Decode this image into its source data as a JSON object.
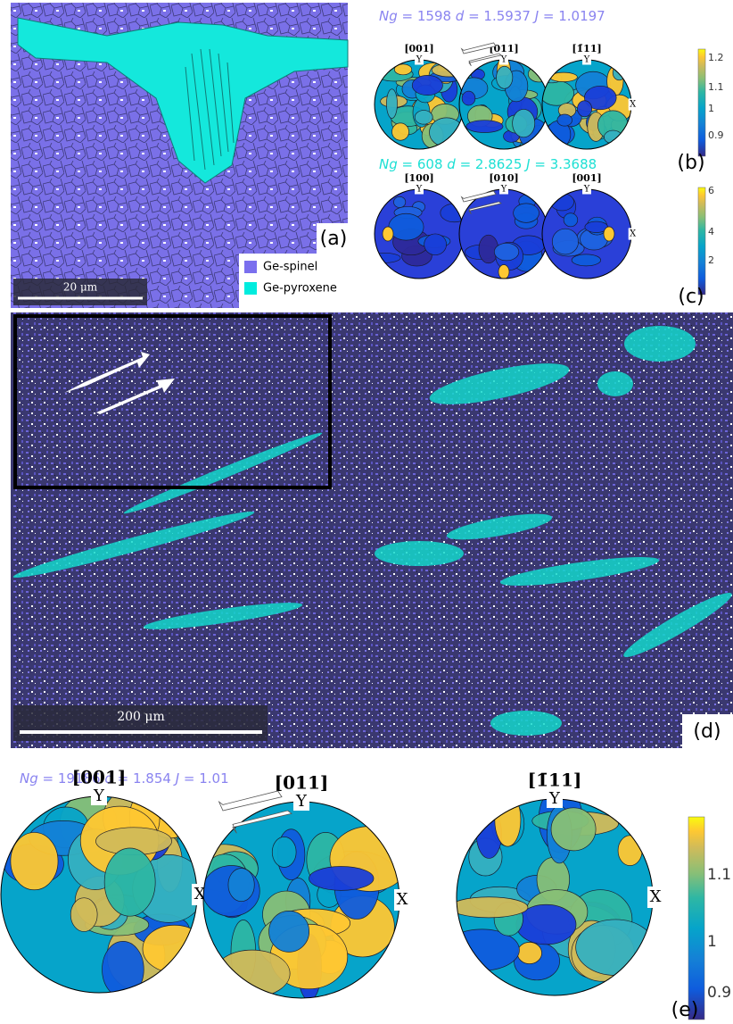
{
  "panel_a": {
    "label": "(a)",
    "scale_bar": "20 μm",
    "legend": [
      "Ge-spinel",
      "Ge-pyroxene"
    ]
  },
  "panel_b": {
    "header": [
      {
        "text": "Ng",
        "italic": true
      },
      {
        "text": " = 1598 "
      },
      {
        "text": "d",
        "italic": true
      },
      {
        "text": " = 1.5937 "
      },
      {
        "text": "J",
        "italic": true
      },
      {
        "text": " = 1.0197"
      }
    ],
    "pole_figures": [
      "[001]",
      "[011]",
      "[1̄11]"
    ],
    "colorbar_ticks": [
      "1.2",
      "1.1",
      "1",
      "0.9"
    ],
    "label": "(b)"
  },
  "panel_c": {
    "header": [
      {
        "text": "Ng",
        "italic": true
      },
      {
        "text": " = 608 "
      },
      {
        "text": "d",
        "italic": true
      },
      {
        "text": " = 2.8625 "
      },
      {
        "text": "J",
        "italic": true
      },
      {
        "text": " = 3.3688"
      }
    ],
    "pole_figures": [
      "[100]",
      "[010]",
      "[001]"
    ],
    "colorbar_ticks": [
      "6",
      "4",
      "2"
    ],
    "label": "(c)"
  },
  "panel_d": {
    "label": "(d)",
    "scale_bar": "200 μm"
  },
  "panel_e": {
    "header": [
      {
        "text": "Ng",
        "italic": true
      },
      {
        "text": " = 19186 "
      },
      {
        "text": "d",
        "italic": true
      },
      {
        "text": " = 1.854 "
      },
      {
        "text": "J",
        "italic": true
      },
      {
        "text": " = 1.01"
      }
    ],
    "pole_figures": [
      "[001]",
      "[011]",
      "[1̄11]"
    ],
    "colorbar_ticks": [
      "1.1",
      "1",
      "0.9"
    ],
    "label": "(e)"
  },
  "axis_labels": {
    "y": "Y",
    "x": "X"
  }
}
